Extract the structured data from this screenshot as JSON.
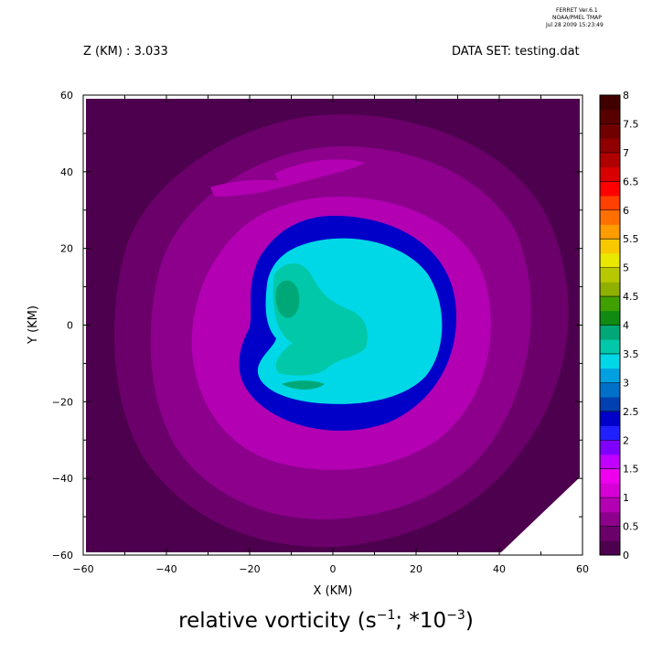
{
  "header": {
    "ferret_line1": "FERRET  Ver.6.1",
    "ferret_line2": "NOAA/PMEL TMAP",
    "ferret_line3": "Jul 28 2009 15:23:49",
    "z_label": "Z (KM) : 3.033",
    "dataset_label": "DATA SET: testing.dat"
  },
  "title": {
    "prefix": "relative vorticity (s",
    "sup1": "−1",
    "middle": "; *10",
    "sup2": "−3",
    "suffix": ")"
  },
  "chart_data": {
    "type": "heatmap",
    "plot": "filled contour",
    "xlabel": "X (KM)",
    "ylabel": "Y (KM)",
    "xlim": [
      -60,
      60
    ],
    "ylim": [
      -60,
      60
    ],
    "x_ticks": [
      -60,
      -40,
      -20,
      0,
      20,
      40,
      60
    ],
    "y_ticks": [
      -60,
      -40,
      -20,
      0,
      20,
      40,
      60
    ],
    "grid": false,
    "colorbar": {
      "position": "right",
      "levels": [
        0,
        0.5,
        1,
        1.5,
        2,
        2.5,
        3,
        3.5,
        4,
        4.5,
        5,
        5.5,
        6,
        6.5,
        7,
        7.5,
        8
      ],
      "labels": [
        "0",
        "0.5",
        "1",
        "1.5",
        "2",
        "2.5",
        "3",
        "3.5",
        "4",
        "4.5",
        "5",
        "5.5",
        "6",
        "6.5",
        "7",
        "7.5",
        "8"
      ],
      "colors": [
        "#4d004d",
        "#6b006b",
        "#8c008c",
        "#b300b3",
        "#d600d6",
        "#ee00ee",
        "#c200ff",
        "#8000ff",
        "#2020ff",
        "#0000c8",
        "#0040b0",
        "#0070c8",
        "#00a0e0",
        "#00d8e8",
        "#00c8a8",
        "#00a878",
        "#108a10",
        "#40a000",
        "#90b000",
        "#b8c800",
        "#e8e800",
        "#f8c800",
        "#ff9c00",
        "#ff7000",
        "#ff4000",
        "#ff0000",
        "#d80000",
        "#b00000",
        "#900000",
        "#700000",
        "#580000",
        "#400000"
      ]
    },
    "regions": [
      {
        "name": "background",
        "level": 0
      },
      {
        "name": "outer-ring",
        "level": 0.5
      },
      {
        "name": "magenta-ring",
        "level": 1
      },
      {
        "name": "inner-magenta-ring",
        "level": 1.5
      },
      {
        "name": "blue-rim",
        "level": 2.5
      },
      {
        "name": "core",
        "level": 4
      },
      {
        "name": "core-center",
        "level": 4.25
      },
      {
        "name": "core-peak",
        "level": 4.5
      }
    ],
    "masked_corner": "bottom-right (x > 40, y < -40)"
  }
}
